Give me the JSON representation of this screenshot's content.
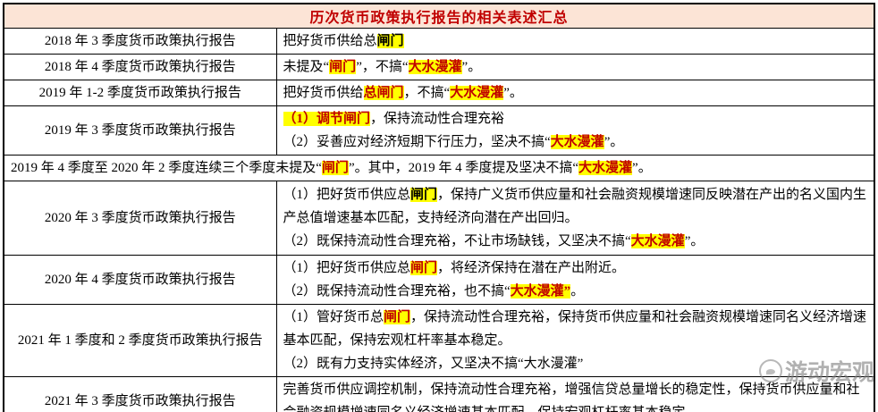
{
  "colors": {
    "header_bg": "#FCE4D6",
    "header_text": "#C00000",
    "highlight": "#FFFF00",
    "emphasis_red": "#C00000",
    "border": "#000000"
  },
  "watermark": {
    "text": "游动宏观",
    "icon": "logo-circle-icon"
  },
  "table": {
    "title": "历次货币政策执行报告的相关表述汇总",
    "rows": [
      {
        "name": "2018 年 3 季度货币政策执行报告",
        "lines": [
          [
            {
              "t": "把好货币供给总",
              "s": "n"
            },
            {
              "t": "闸门",
              "s": "hb"
            }
          ]
        ]
      },
      {
        "name": "2018 年 4 季度货币政策执行报告",
        "lines": [
          [
            {
              "t": "未提及“",
              "s": "n"
            },
            {
              "t": "闸门",
              "s": "hr"
            },
            {
              "t": "”，不搞“",
              "s": "n"
            },
            {
              "t": "大水漫灌",
              "s": "hr"
            },
            {
              "t": "”。",
              "s": "n"
            }
          ]
        ]
      },
      {
        "name": "2019 年 1-2 季度货币政策执行报告",
        "lines": [
          [
            {
              "t": "把好货币供给",
              "s": "n"
            },
            {
              "t": "总闸门",
              "s": "hr"
            },
            {
              "t": "，不搞“",
              "s": "n"
            },
            {
              "t": "大水漫灌",
              "s": "hr"
            },
            {
              "t": "”。",
              "s": "n"
            }
          ]
        ]
      },
      {
        "name": "2019 年 3 季度货币政策执行报告",
        "lines": [
          [
            {
              "t": "（1）调节闸门",
              "s": "hr"
            },
            {
              "t": "，保持流动性合理充裕",
              "s": "n"
            }
          ],
          [
            {
              "t": "（2）妥善应对经济短期下行压力，坚决不搞“",
              "s": "n"
            },
            {
              "t": "大水漫灌",
              "s": "hr"
            },
            {
              "t": "”。",
              "s": "n"
            }
          ]
        ]
      },
      {
        "span": true,
        "lines": [
          [
            {
              "t": "2019 年 4 季度至 2020 年 2 季度连续三个季度未提及“",
              "s": "n"
            },
            {
              "t": "闸门",
              "s": "hr"
            },
            {
              "t": "”。其中，2019 年 4 季度提及坚决不搞“",
              "s": "n"
            },
            {
              "t": "大水漫灌",
              "s": "hr"
            },
            {
              "t": "”。",
              "s": "n"
            }
          ]
        ]
      },
      {
        "name": "2020 年 3 季度货币政策执行报告",
        "lines": [
          [
            {
              "t": "（1）把好货币供应总",
              "s": "n"
            },
            {
              "t": "闸门",
              "s": "hb"
            },
            {
              "t": "，保持广义货币供应量和社会融资规模增速同反映潜在产出的名义国内生产总值增速基本匹配，支持经济向潜在产出回归。",
              "s": "n"
            }
          ],
          [
            {
              "t": "（2）既保持流动性合理充裕，不让市场缺钱，又坚决不搞“",
              "s": "n"
            },
            {
              "t": "大水漫灌",
              "s": "hr"
            },
            {
              "t": "”。",
              "s": "n"
            }
          ]
        ]
      },
      {
        "name": "2020 年 4 季度货币政策执行报告",
        "lines": [
          [
            {
              "t": "（1）把好货币供应总",
              "s": "n"
            },
            {
              "t": "闸门",
              "s": "hr"
            },
            {
              "t": "，将经济保持在潜在产出附近。",
              "s": "n"
            }
          ],
          [
            {
              "t": "（2）既保持流动性合理充裕，也不搞“",
              "s": "n"
            },
            {
              "t": "大水漫灌”",
              "s": "hr"
            },
            {
              "t": "。",
              "s": "n"
            }
          ]
        ]
      },
      {
        "name": "2021 年 1 季度和 2 季度货币政策执行报告",
        "lines": [
          [
            {
              "t": "（1）管好货币总",
              "s": "n"
            },
            {
              "t": "闸门",
              "s": "hr"
            },
            {
              "t": "，保持流动性合理充裕，保持货币供应量和社会融资规模增速同名义经济增速基本匹配，保持宏观杠杆率基本稳定。",
              "s": "n"
            }
          ],
          [
            {
              "t": "（2）既有力支持实体经济，又坚决不搞“大水漫灌”",
              "s": "n"
            }
          ]
        ]
      },
      {
        "name": "2021 年 3 季度货币政策执行报告",
        "lines": [
          [
            {
              "t": "完善货币供应调控机制，保持流动性合理充裕，增强信贷总量增长的稳定性，保持货币供应量和社会融资规模增速同名义经济增速基本匹配，保持宏观杠杆率基本稳定。",
              "s": "n"
            }
          ]
        ]
      }
    ]
  }
}
